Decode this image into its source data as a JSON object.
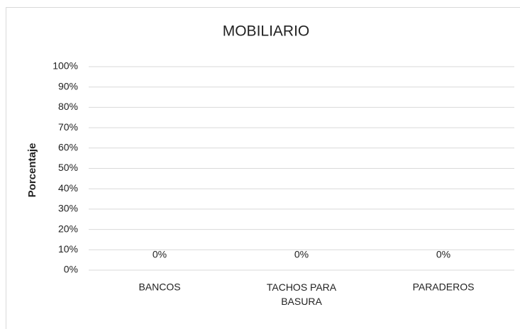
{
  "chart_data": {
    "type": "bar",
    "title": "MOBILIARIO",
    "y_label": "Porcentaje",
    "categories": [
      "BANCOS",
      "TACHOS PARA BASURA",
      "PARADEROS"
    ],
    "values": [
      0,
      0,
      0
    ],
    "value_labels": [
      "0%",
      "0%",
      "0%"
    ],
    "color": "#4472c4",
    "ylim": [
      0,
      100
    ],
    "yticks": [
      {
        "value": 0,
        "label": "0%"
      },
      {
        "value": 10,
        "label": "10%"
      },
      {
        "value": 20,
        "label": "20%"
      },
      {
        "value": 30,
        "label": "30%"
      },
      {
        "value": 40,
        "label": "40%"
      },
      {
        "value": 50,
        "label": "50%"
      },
      {
        "value": 60,
        "label": "60%"
      },
      {
        "value": 70,
        "label": "70%"
      },
      {
        "value": 80,
        "label": "80%"
      },
      {
        "value": 90,
        "label": "90%"
      },
      {
        "value": 100,
        "label": "100%"
      }
    ],
    "grid": true
  }
}
